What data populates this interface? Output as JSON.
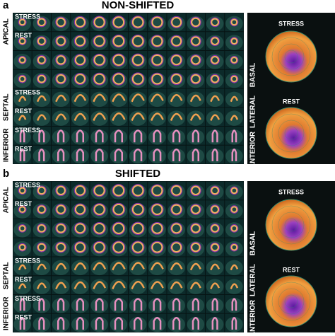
{
  "panels": [
    {
      "label": "a",
      "title": "NON-SHIFTED",
      "row_labels": [
        "STRESS",
        "REST",
        null,
        null,
        "STRESS",
        "REST",
        "STRESS",
        "REST"
      ],
      "side_labels": [
        "APICAL",
        "SEPTAL",
        "INFERIOR"
      ],
      "map_labels": [
        "STRESS",
        "REST"
      ],
      "right_labels": [
        "BASAL",
        "LATERAL",
        "ANTERIOR"
      ]
    },
    {
      "label": "b",
      "title": "SHIFTED",
      "row_labels": [
        "STRESS",
        "REST",
        null,
        null,
        "STRESS",
        "REST",
        "STRESS",
        "REST"
      ],
      "side_labels": [
        "APICAL",
        "SEPTAL",
        "INFERIOR"
      ],
      "map_labels": [
        "STRESS",
        "REST"
      ],
      "right_labels": [
        "BASAL",
        "LATERAL",
        "ANTERIOR"
      ]
    }
  ]
}
